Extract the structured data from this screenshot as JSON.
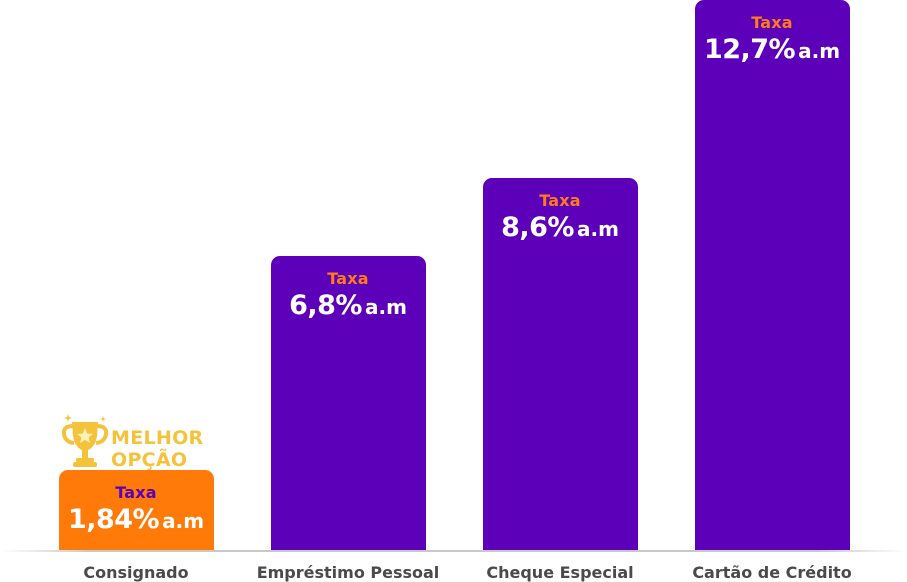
{
  "chart_data": {
    "type": "bar",
    "categories": [
      "Consignado",
      "Empréstimo Pessoal",
      "Cheque Especial",
      "Cartão de Crédito"
    ],
    "values": [
      1.84,
      6.8,
      8.6,
      12.7
    ],
    "unit": "% a.m",
    "bar_labels": [
      {
        "caption": "Taxa",
        "value": "1,84%",
        "unit": "a.m"
      },
      {
        "caption": "Taxa",
        "value": "6,8%",
        "unit": "a.m"
      },
      {
        "caption": "Taxa",
        "value": "8,6%",
        "unit": "a.m"
      },
      {
        "caption": "Taxa",
        "value": "12,7%",
        "unit": "a.m"
      }
    ],
    "highlight_index": 0,
    "ylim": [
      0,
      12.7
    ],
    "grid": false,
    "legend": "none"
  },
  "highlight_badge": {
    "icon": "trophy-icon",
    "line1": "MELHOR",
    "line2": "OPÇÃO"
  },
  "colors": {
    "bar": "#5d00b9",
    "highlight_bar": "#ff7a09",
    "caption_on_bar": "#ff7a1a",
    "caption_on_highlight": "#5b00b5",
    "value_text": "#ffffff",
    "badge": "#f5c33b",
    "category_text": "#4a4a4a"
  }
}
